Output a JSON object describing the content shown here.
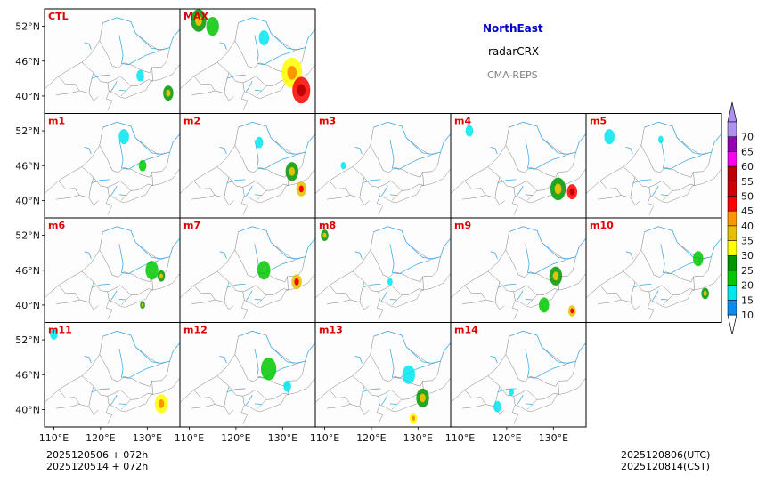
{
  "header": {
    "region": "NorthEast",
    "variable": "radarCRX",
    "model": "CMA-REPS",
    "region_color": "#0000cc",
    "model_color": "#808080"
  },
  "footer": {
    "init_time_line1": "2025120506  +  072h",
    "init_time_line2": "2025120514  +  072h",
    "valid_utc": "2025120806(UTC)",
    "valid_cst": "2025120814(CST)"
  },
  "chart_data": {
    "type": "heatmap",
    "title": "NorthEast radarCRX CMA-REPS",
    "panels": [
      {
        "label": "CTL",
        "row": 0,
        "col": 0,
        "echo": [
          {
            "lon": 128.5,
            "lat": 43.5,
            "dbz": 15,
            "r": 1.5
          },
          {
            "lon": 134.5,
            "lat": 40.5,
            "dbz": 25,
            "r": 2.0
          }
        ]
      },
      {
        "label": "MAX",
        "row": 0,
        "col": 1,
        "echo": [
          {
            "lon": 112.0,
            "lat": 53.0,
            "dbz": 25,
            "r": 3.0
          },
          {
            "lon": 115.0,
            "lat": 52.0,
            "dbz": 20,
            "r": 2.5
          },
          {
            "lon": 126.0,
            "lat": 50.0,
            "dbz": 15,
            "r": 2.0
          },
          {
            "lon": 132.0,
            "lat": 44.0,
            "dbz": 30,
            "r": 4.0
          },
          {
            "lon": 134.0,
            "lat": 41.0,
            "dbz": 45,
            "r": 3.5
          }
        ]
      },
      {
        "label": "m1",
        "row": 1,
        "col": 0,
        "echo": [
          {
            "lon": 125.0,
            "lat": 51.0,
            "dbz": 15,
            "r": 2.0
          },
          {
            "lon": 129.0,
            "lat": 46.0,
            "dbz": 20,
            "r": 1.5
          }
        ]
      },
      {
        "label": "m2",
        "row": 1,
        "col": 1,
        "echo": [
          {
            "lon": 132.0,
            "lat": 45.0,
            "dbz": 25,
            "r": 2.5
          },
          {
            "lon": 134.0,
            "lat": 42.0,
            "dbz": 35,
            "r": 2.0
          },
          {
            "lon": 125.0,
            "lat": 50.0,
            "dbz": 15,
            "r": 1.5
          }
        ]
      },
      {
        "label": "m3",
        "row": 1,
        "col": 2,
        "echo": [
          {
            "lon": 114.0,
            "lat": 46.0,
            "dbz": 15,
            "r": 1.0
          }
        ]
      },
      {
        "label": "m4",
        "row": 1,
        "col": 3,
        "echo": [
          {
            "lon": 112.0,
            "lat": 52.0,
            "dbz": 15,
            "r": 1.5
          },
          {
            "lon": 131.0,
            "lat": 42.0,
            "dbz": 25,
            "r": 3.0
          },
          {
            "lon": 134.0,
            "lat": 41.5,
            "dbz": 45,
            "r": 2.0
          }
        ]
      },
      {
        "label": "m5",
        "row": 1,
        "col": 4,
        "echo": [
          {
            "lon": 113.0,
            "lat": 51.0,
            "dbz": 15,
            "r": 2.0
          },
          {
            "lon": 124.0,
            "lat": 50.5,
            "dbz": 15,
            "r": 1.0
          }
        ]
      },
      {
        "label": "m6",
        "row": 2,
        "col": 0,
        "echo": [
          {
            "lon": 131.0,
            "lat": 46.0,
            "dbz": 20,
            "r": 2.5
          },
          {
            "lon": 133.0,
            "lat": 45.0,
            "dbz": 25,
            "r": 1.5
          },
          {
            "lon": 129.0,
            "lat": 40.0,
            "dbz": 25,
            "r": 1.0
          }
        ]
      },
      {
        "label": "m7",
        "row": 2,
        "col": 1,
        "echo": [
          {
            "lon": 126.0,
            "lat": 46.0,
            "dbz": 20,
            "r": 2.5
          },
          {
            "lon": 133.0,
            "lat": 44.0,
            "dbz": 35,
            "r": 2.0
          }
        ]
      },
      {
        "label": "m8",
        "row": 2,
        "col": 2,
        "echo": [
          {
            "lon": 110.0,
            "lat": 52.0,
            "dbz": 25,
            "r": 1.5
          },
          {
            "lon": 124.0,
            "lat": 44.0,
            "dbz": 15,
            "r": 1.0
          }
        ]
      },
      {
        "label": "m9",
        "row": 2,
        "col": 3,
        "echo": [
          {
            "lon": 130.5,
            "lat": 45.0,
            "dbz": 25,
            "r": 2.5
          },
          {
            "lon": 128.0,
            "lat": 40.0,
            "dbz": 20,
            "r": 2.0
          },
          {
            "lon": 134.0,
            "lat": 39.0,
            "dbz": 35,
            "r": 1.5
          }
        ]
      },
      {
        "label": "m10",
        "row": 2,
        "col": 4,
        "echo": [
          {
            "lon": 132.0,
            "lat": 48.0,
            "dbz": 20,
            "r": 2.0
          },
          {
            "lon": 133.5,
            "lat": 42.0,
            "dbz": 25,
            "r": 1.5
          }
        ]
      },
      {
        "label": "m11",
        "row": 3,
        "col": 0,
        "echo": [
          {
            "lon": 133.0,
            "lat": 41.0,
            "dbz": 30,
            "r": 2.5
          },
          {
            "lon": 110.0,
            "lat": 53.0,
            "dbz": 15,
            "r": 1.5
          }
        ]
      },
      {
        "label": "m12",
        "row": 3,
        "col": 1,
        "echo": [
          {
            "lon": 127.0,
            "lat": 47.0,
            "dbz": 20,
            "r": 3.0
          },
          {
            "lon": 131.0,
            "lat": 44.0,
            "dbz": 15,
            "r": 1.5
          }
        ]
      },
      {
        "label": "m13",
        "row": 3,
        "col": 2,
        "echo": [
          {
            "lon": 128.0,
            "lat": 46.0,
            "dbz": 15,
            "r": 2.5
          },
          {
            "lon": 131.0,
            "lat": 42.0,
            "dbz": 25,
            "r": 2.5
          },
          {
            "lon": 129.0,
            "lat": 38.5,
            "dbz": 30,
            "r": 1.5
          }
        ]
      },
      {
        "label": "m14",
        "row": 3,
        "col": 3,
        "echo": [
          {
            "lon": 118.0,
            "lat": 40.5,
            "dbz": 15,
            "r": 1.5
          },
          {
            "lon": 121.0,
            "lat": 43.0,
            "dbz": 15,
            "r": 1.0
          }
        ]
      }
    ],
    "lon_range": [
      108,
      137
    ],
    "lat_range": [
      37,
      55
    ],
    "xticks": [
      110,
      120,
      130
    ],
    "xtick_labels": [
      "110°E",
      "120°E",
      "130°E"
    ],
    "yticks": [
      40,
      46,
      52
    ],
    "ytick_labels": [
      "40°N",
      "46°N",
      "52°N"
    ],
    "colorbar": {
      "levels": [
        10,
        15,
        20,
        25,
        30,
        35,
        40,
        45,
        50,
        55,
        60,
        65,
        70
      ],
      "colors": [
        "#0a8cf0",
        "#00e5ee",
        "#00c800",
        "#009600",
        "#ffff00",
        "#e6c000",
        "#ff9600",
        "#ff0000",
        "#d40000",
        "#c00000",
        "#ff00f0",
        "#9600b4",
        "#ad90f0"
      ],
      "extend": "both"
    }
  }
}
